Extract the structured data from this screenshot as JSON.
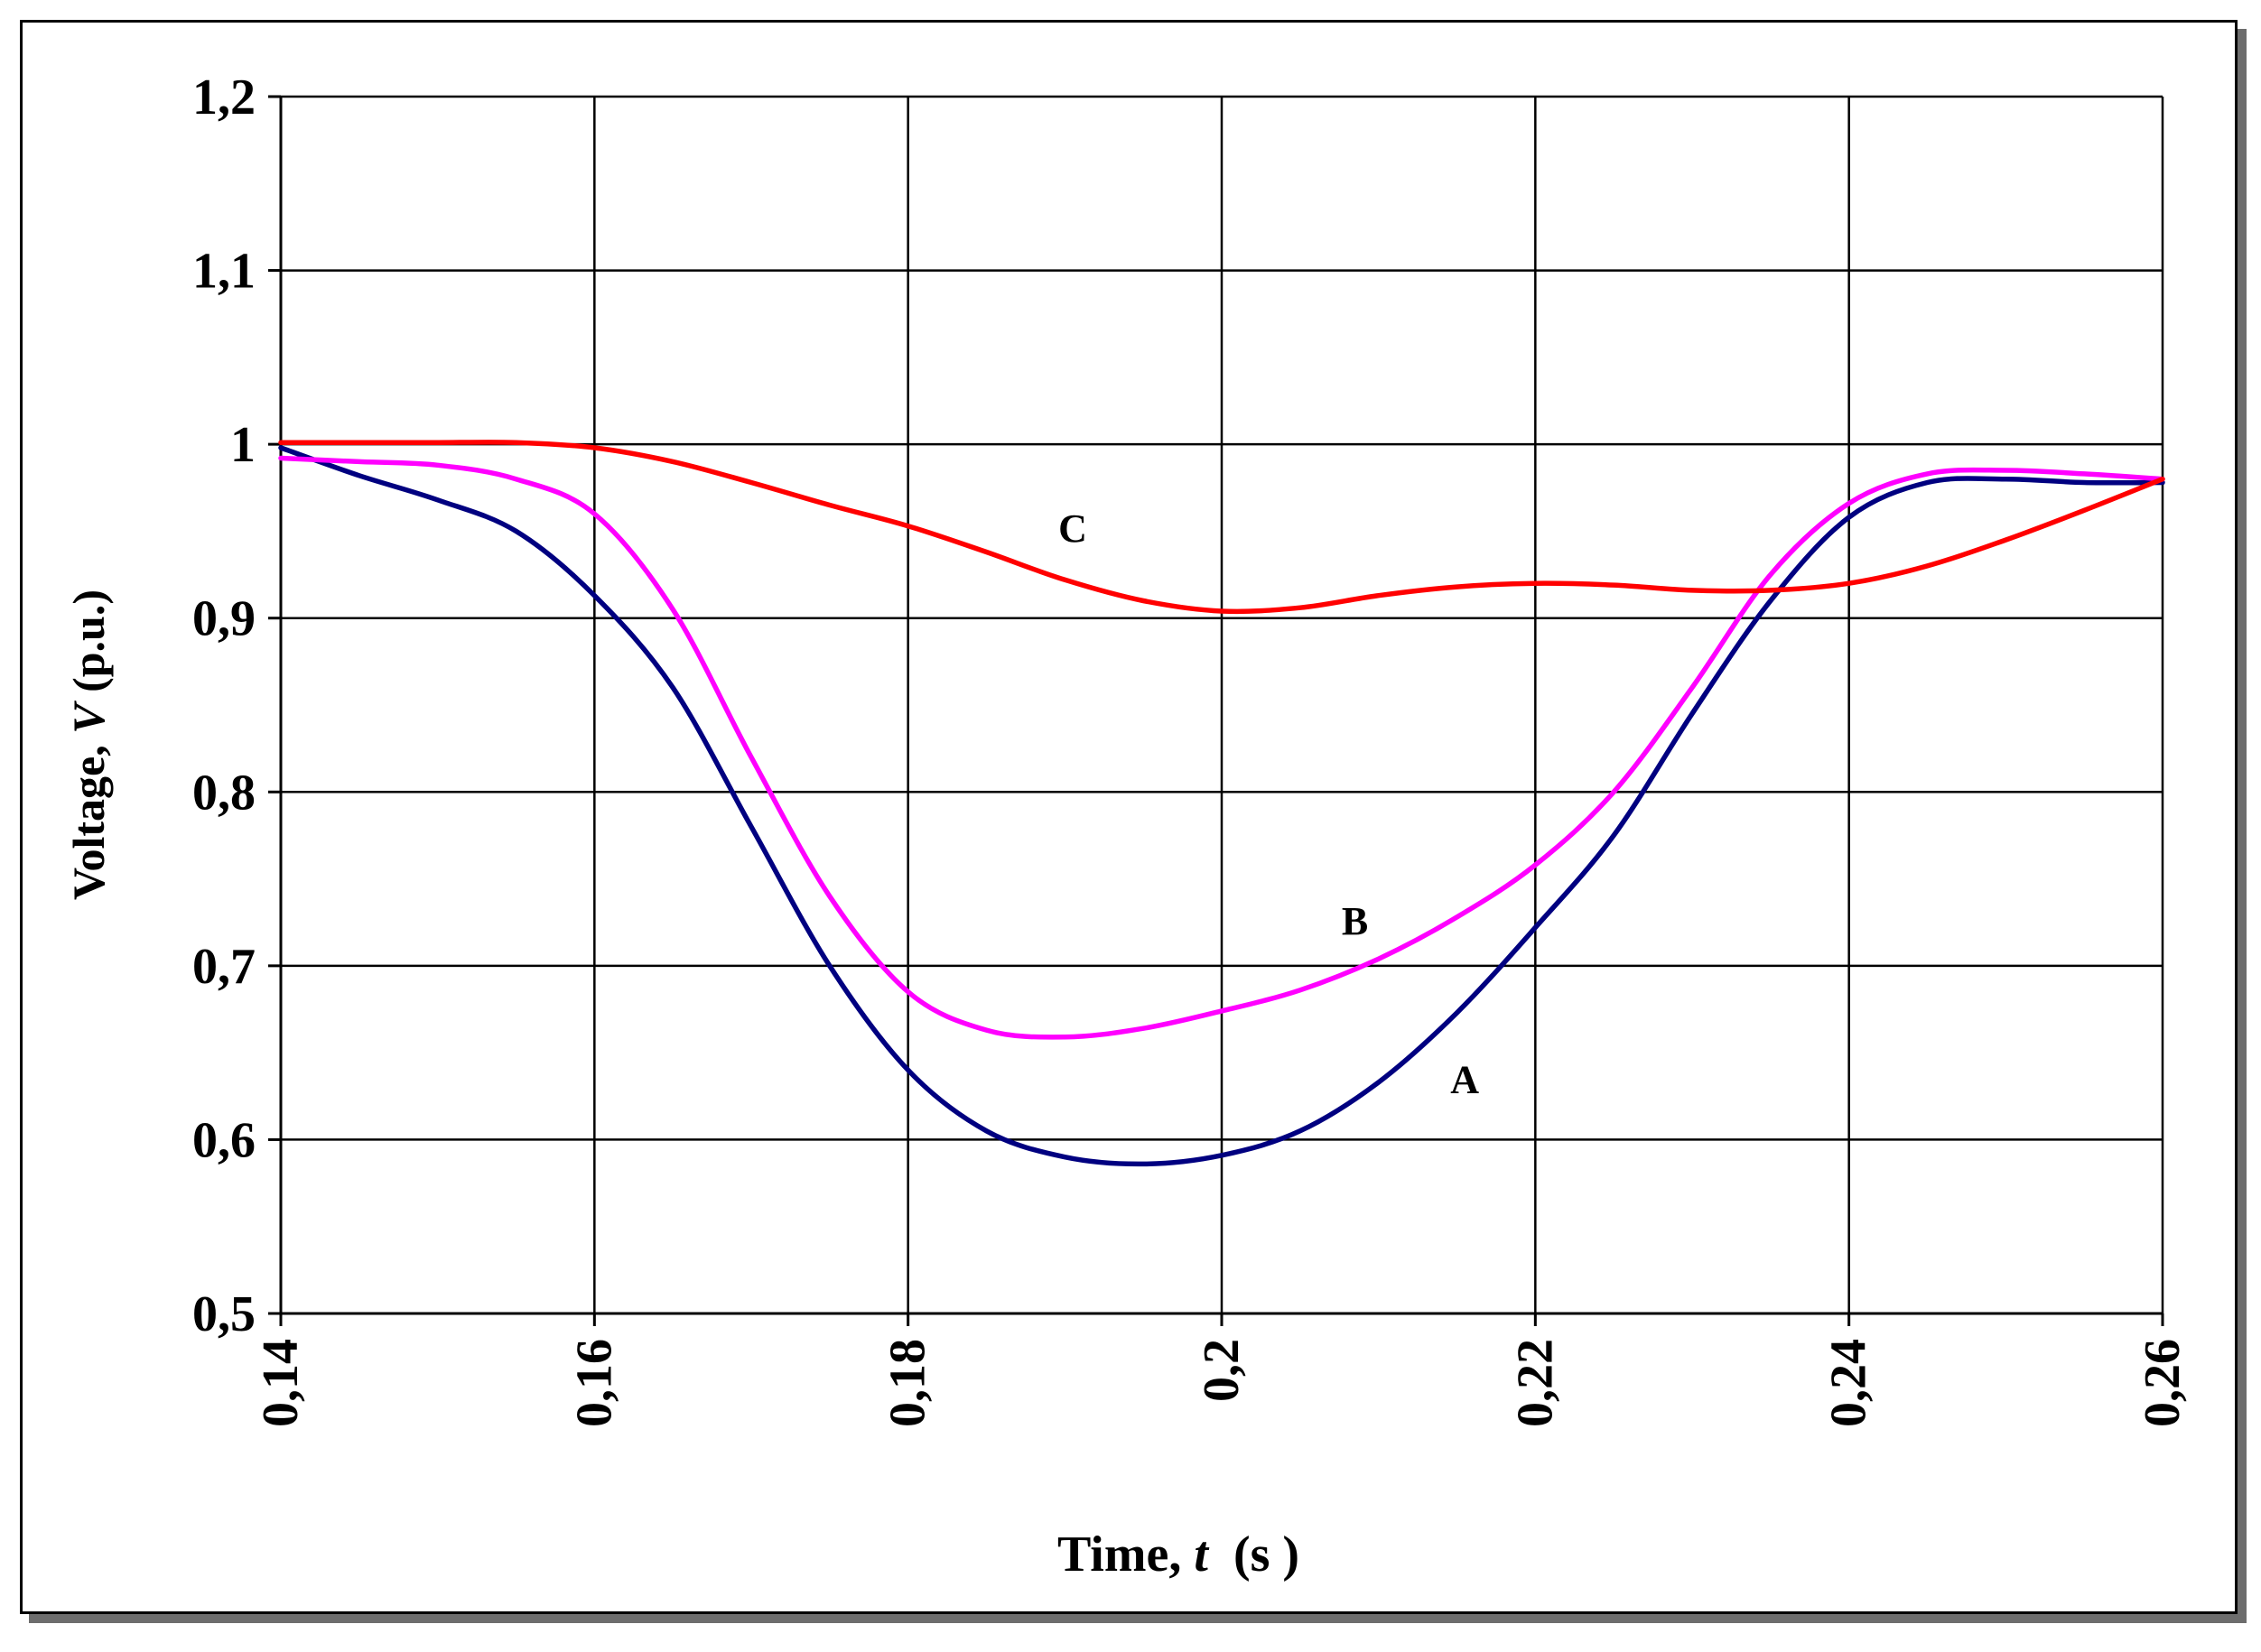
{
  "chart_data": {
    "type": "line",
    "xlabel_prefix": "Time, ",
    "xlabel_var": "t",
    "xlabel_suffix": "  (s )",
    "ylabel_prefix": "Voltage, ",
    "ylabel_var": "V",
    "ylabel_suffix": " (p.u.)",
    "xlim": [
      0.14,
      0.26
    ],
    "ylim": [
      0.5,
      1.2
    ],
    "xticks": [
      0.14,
      0.16,
      0.18,
      0.2,
      0.22,
      0.24,
      0.26
    ],
    "xtick_labels": [
      "0,14",
      "0,16",
      "0,18",
      "0,2",
      "0,22",
      "0,24",
      "0,26"
    ],
    "yticks": [
      0.5,
      0.6,
      0.7,
      0.8,
      0.9,
      1.0,
      1.1,
      1.2
    ],
    "ytick_labels": [
      "0,5",
      "0,6",
      "0,7",
      "0,8",
      "0,9",
      "1",
      "1,1",
      "1,2"
    ],
    "grid": true,
    "series": [
      {
        "name": "A",
        "color": "#000080",
        "label_at": [
          0.2155,
          0.627
        ],
        "x": [
          0.14,
          0.145,
          0.15,
          0.155,
          0.16,
          0.165,
          0.17,
          0.175,
          0.18,
          0.185,
          0.19,
          0.195,
          0.2,
          0.205,
          0.21,
          0.215,
          0.22,
          0.225,
          0.23,
          0.235,
          0.24,
          0.245,
          0.25,
          0.255,
          0.26
        ],
        "values": [
          0.998,
          0.982,
          0.968,
          0.95,
          0.913,
          0.86,
          0.78,
          0.7,
          0.64,
          0.605,
          0.59,
          0.586,
          0.591,
          0.605,
          0.633,
          0.673,
          0.722,
          0.775,
          0.845,
          0.91,
          0.958,
          0.978,
          0.98,
          0.978,
          0.978
        ]
      },
      {
        "name": "B",
        "color": "#ff00ff",
        "label_at": [
          0.2085,
          0.718
        ],
        "x": [
          0.14,
          0.145,
          0.15,
          0.155,
          0.16,
          0.165,
          0.17,
          0.175,
          0.18,
          0.185,
          0.19,
          0.195,
          0.2,
          0.205,
          0.21,
          0.215,
          0.22,
          0.225,
          0.23,
          0.235,
          0.24,
          0.245,
          0.25,
          0.255,
          0.26
        ],
        "values": [
          0.992,
          0.99,
          0.988,
          0.98,
          0.96,
          0.905,
          0.82,
          0.74,
          0.685,
          0.663,
          0.659,
          0.664,
          0.674,
          0.686,
          0.704,
          0.728,
          0.758,
          0.8,
          0.86,
          0.925,
          0.966,
          0.983,
          0.985,
          0.983,
          0.98
        ]
      },
      {
        "name": "C",
        "color": "#ff0000",
        "label_at": [
          0.1905,
          0.944
        ],
        "x": [
          0.14,
          0.145,
          0.15,
          0.155,
          0.16,
          0.165,
          0.17,
          0.175,
          0.18,
          0.185,
          0.19,
          0.195,
          0.2,
          0.205,
          0.21,
          0.215,
          0.22,
          0.225,
          0.23,
          0.235,
          0.24,
          0.245,
          0.25,
          0.255,
          0.26
        ],
        "values": [
          1.001,
          1.001,
          1.001,
          1.001,
          0.998,
          0.99,
          0.978,
          0.965,
          0.953,
          0.938,
          0.922,
          0.91,
          0.904,
          0.906,
          0.913,
          0.918,
          0.92,
          0.919,
          0.916,
          0.916,
          0.92,
          0.93,
          0.945,
          0.962,
          0.98
        ]
      }
    ]
  }
}
